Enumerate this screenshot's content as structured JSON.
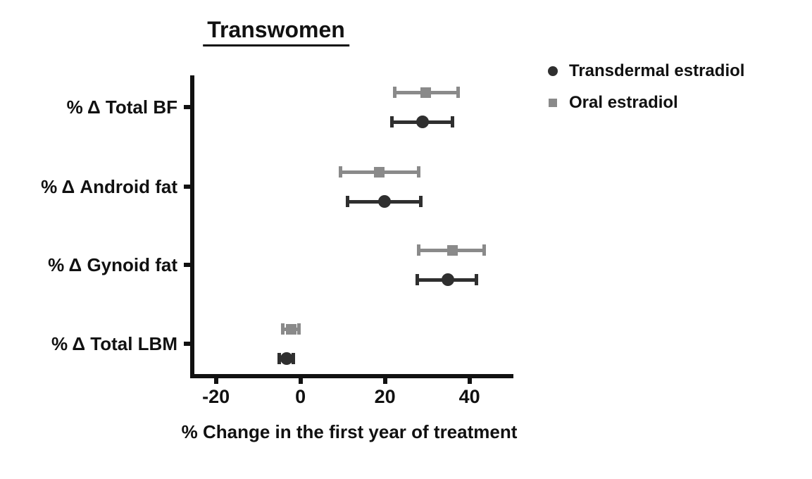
{
  "chart_data": {
    "type": "scatter",
    "subtype": "point-range-forest-plot",
    "title": "Transwomen",
    "xlabel": "% Change in the first year of treatment",
    "ylabel": "",
    "categories": [
      "% Δ Total BF",
      "% Δ Android fat",
      "% Δ Gynoid fat",
      "% Δ Total LBM"
    ],
    "x_ticks": [
      -20,
      0,
      20,
      40
    ],
    "xlim": [
      -26,
      50
    ],
    "grid": false,
    "legend_position": "top-right",
    "axis_color": "#111111",
    "series": [
      {
        "name": "Transdermal estradiol",
        "marker": "circle",
        "color": "#2f2f2f",
        "values": [
          28.9,
          19.8,
          34.8,
          -3.3
        ],
        "ci_low": [
          21.7,
          11.2,
          27.6,
          -5.0
        ],
        "ci_high": [
          35.9,
          28.4,
          41.7,
          -1.7
        ]
      },
      {
        "name": "Oral estradiol",
        "marker": "square",
        "color": "#8a8a8a",
        "values": [
          29.7,
          18.7,
          35.9,
          -2.2
        ],
        "ci_low": [
          22.3,
          9.4,
          27.9,
          -4.2
        ],
        "ci_high": [
          37.3,
          27.9,
          43.4,
          -0.3
        ]
      }
    ]
  }
}
